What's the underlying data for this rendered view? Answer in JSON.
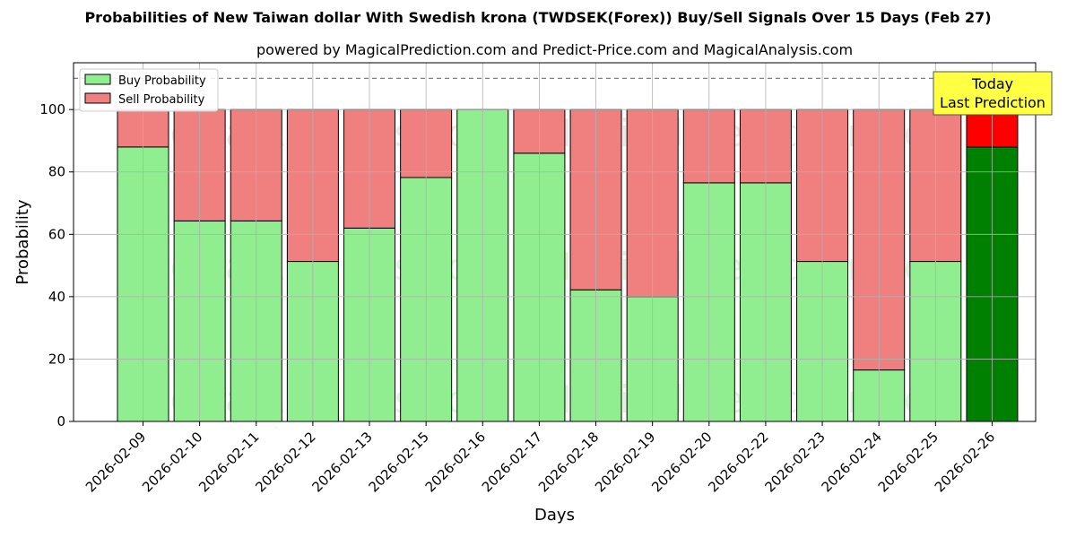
{
  "title": "Probabilities of New Taiwan dollar With Swedish krona (TWDSEK(Forex)) Buy/Sell Signals Over 15 Days (Feb 27)",
  "subtitle": "powered by MagicalPrediction.com and Predict-Price.com and MagicalAnalysis.com",
  "watermarks": [
    "MagicalAnalysis.com",
    "MagicalPrediction.com"
  ],
  "annotation": {
    "line1": "Today",
    "line2": "Last Prediction"
  },
  "colors": {
    "buy": "#90ee90",
    "sell": "#f08080",
    "today_buy": "#008000",
    "today_sell": "#ff0000",
    "annotation_bg": "#ffff44"
  },
  "chart_data": {
    "type": "bar",
    "stacked": true,
    "xlabel": "Days",
    "ylabel": "Probability",
    "ylim": [
      0,
      115
    ],
    "yticks": [
      0,
      20,
      40,
      60,
      80,
      100
    ],
    "grid": true,
    "legend_position": "top-left",
    "reference_line": 110,
    "categories": [
      "2026-02-09",
      "2026-02-10",
      "2026-02-11",
      "2026-02-12",
      "2026-02-13",
      "2026-02-15",
      "2026-02-16",
      "2026-02-17",
      "2026-02-18",
      "2026-02-19",
      "2026-02-20",
      "2026-02-22",
      "2026-02-23",
      "2026-02-24",
      "2026-02-25",
      "2026-02-26"
    ],
    "series": [
      {
        "name": "Buy Probability",
        "values": [
          88,
          64.3,
          64.3,
          51.3,
          62,
          78.2,
          100,
          86,
          42.2,
          40,
          76.5,
          76.5,
          51.3,
          16.5,
          51.3,
          88
        ]
      },
      {
        "name": "Sell Probability",
        "values": [
          12,
          35.7,
          35.7,
          48.7,
          38,
          21.8,
          0,
          14,
          57.8,
          60,
          23.5,
          23.5,
          48.7,
          83.5,
          48.7,
          12
        ]
      }
    ]
  }
}
